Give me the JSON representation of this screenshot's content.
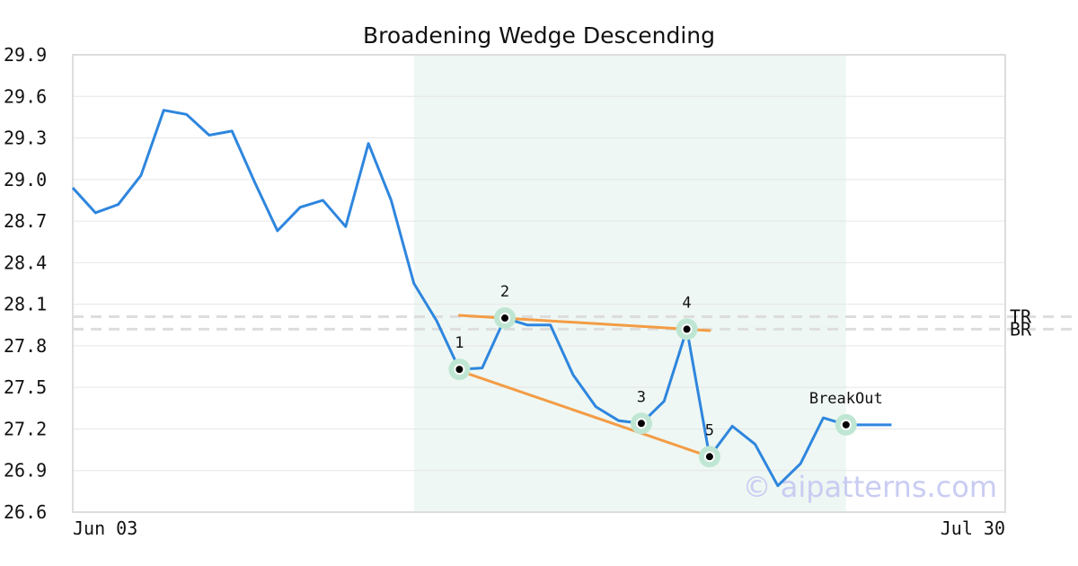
{
  "watermark": "© aipatterns.com",
  "colors": {
    "price_line": "#2e86de",
    "pattern_line": "#f39c45",
    "highlight_region": "#eef7f3",
    "marker_halo": "#bfe6d3",
    "grid": "#e6e6e6",
    "level_line": "#dddddd",
    "frame": "#dddddd"
  },
  "chart_data": {
    "type": "line",
    "title": "Broadening Wedge Descending",
    "xlabel": "",
    "ylabel": "",
    "x_tick_labels": [
      "Jun 03",
      "Jul 30"
    ],
    "x_range_index": [
      0,
      41
    ],
    "ylim": [
      26.6,
      29.9
    ],
    "y_ticks": [
      "29.9",
      "29.6",
      "29.3",
      "29.0",
      "28.7",
      "28.4",
      "28.1",
      "27.8",
      "27.5",
      "27.2",
      "26.9",
      "26.6"
    ],
    "grid": "horizontal",
    "series": [
      {
        "values": [
          28.94,
          28.76,
          28.82,
          29.03,
          29.5,
          29.47,
          29.32,
          29.35,
          28.98,
          28.63,
          28.8,
          28.85,
          28.66,
          29.26,
          28.85,
          28.25,
          27.98,
          27.63,
          27.64,
          28.0,
          27.95,
          27.95,
          27.59,
          27.36,
          27.26,
          27.24,
          27.4,
          27.92,
          27.0,
          27.22,
          27.09,
          26.79,
          26.95,
          27.28,
          27.23,
          27.23,
          27.23
        ]
      }
    ],
    "highlight_range_index": [
      15,
      34
    ],
    "pattern_points": [
      {
        "label": "1",
        "index": 17,
        "value": 27.63
      },
      {
        "label": "2",
        "index": 19,
        "value": 28.0
      },
      {
        "label": "3",
        "index": 25,
        "value": 27.24
      },
      {
        "label": "4",
        "index": 27,
        "value": 27.92
      },
      {
        "label": "5",
        "index": 28,
        "value": 27.0
      },
      {
        "label": "BreakOut",
        "index": 34,
        "value": 27.23
      }
    ],
    "trend_lines": [
      {
        "from": {
          "index": 17,
          "value": 28.02
        },
        "to": {
          "index": 28,
          "value": 27.91
        }
      },
      {
        "from": {
          "index": 17,
          "value": 27.62
        },
        "to": {
          "index": 28,
          "value": 27.0
        }
      }
    ],
    "levels": [
      {
        "label": "TR",
        "value": 28.01
      },
      {
        "label": "BR",
        "value": 27.92
      }
    ]
  }
}
